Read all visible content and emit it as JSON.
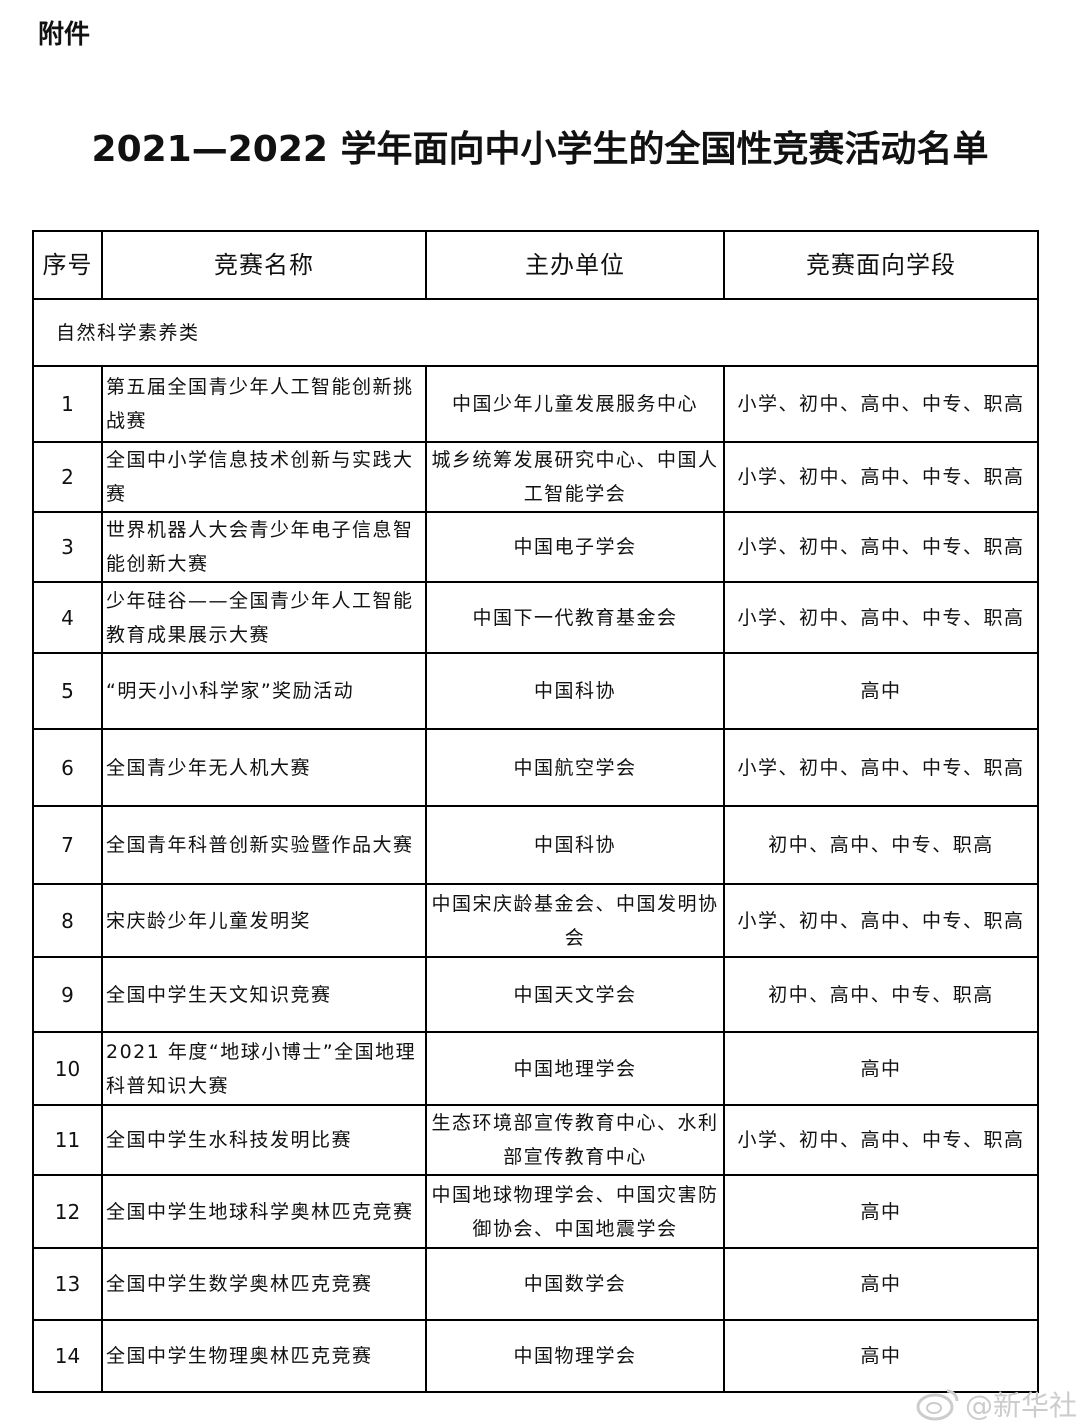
{
  "attachment_label": "附件",
  "title": "2021—2022 学年面向中小学生的全国性竞赛活动名单",
  "table": {
    "headers": [
      "序号",
      "竞赛名称",
      "主办单位",
      "竞赛面向学段"
    ],
    "category": "自然科学素养类",
    "rows": [
      {
        "no": "1",
        "name": "第五届全国青少年人工智能创新挑战赛",
        "organizer": "中国少年儿童发展服务中心",
        "stages": "小学、初中、高中、中专、职高"
      },
      {
        "no": "2",
        "name": "全国中小学信息技术创新与实践大赛",
        "organizer": "城乡统筹发展研究中心、中国人工智能学会",
        "stages": "小学、初中、高中、中专、职高"
      },
      {
        "no": "3",
        "name": "世界机器人大会青少年电子信息智能创新大赛",
        "organizer": "中国电子学会",
        "stages": "小学、初中、高中、中专、职高"
      },
      {
        "no": "4",
        "name": "少年硅谷——全国青少年人工智能教育成果展示大赛",
        "organizer": "中国下一代教育基金会",
        "stages": "小学、初中、高中、中专、职高"
      },
      {
        "no": "5",
        "name": "“明天小小科学家”奖励活动",
        "organizer": "中国科协",
        "stages": "高中"
      },
      {
        "no": "6",
        "name": "全国青少年无人机大赛",
        "organizer": "中国航空学会",
        "stages": "小学、初中、高中、中专、职高"
      },
      {
        "no": "7",
        "name": "全国青年科普创新实验暨作品大赛",
        "organizer": "中国科协",
        "stages": "初中、高中、中专、职高"
      },
      {
        "no": "8",
        "name": "宋庆龄少年儿童发明奖",
        "organizer": "中国宋庆龄基金会、中国发明协会",
        "stages": "小学、初中、高中、中专、职高"
      },
      {
        "no": "9",
        "name": "全国中学生天文知识竞赛",
        "organizer": "中国天文学会",
        "stages": "初中、高中、中专、职高"
      },
      {
        "no": "10",
        "name": "2021 年度“地球小博士”全国地理科普知识大赛",
        "organizer": "中国地理学会",
        "stages": "高中"
      },
      {
        "no": "11",
        "name": "全国中学生水科技发明比赛",
        "organizer": "生态环境部宣传教育中心、水利部宣传教育中心",
        "stages": "小学、初中、高中、中专、职高"
      },
      {
        "no": "12",
        "name": "全国中学生地球科学奥林匹克竞赛",
        "organizer": "中国地球物理学会、中国灾害防御协会、中国地震学会",
        "stages": "高中"
      },
      {
        "no": "13",
        "name": "全国中学生数学奥林匹克竞赛",
        "organizer": "中国数学会",
        "stages": "高中"
      },
      {
        "no": "14",
        "name": "全国中学生物理奥林匹克竞赛",
        "organizer": "中国物理学会",
        "stages": "高中"
      }
    ]
  },
  "watermark": "@新华社",
  "watermark_icon": "weibo-icon"
}
